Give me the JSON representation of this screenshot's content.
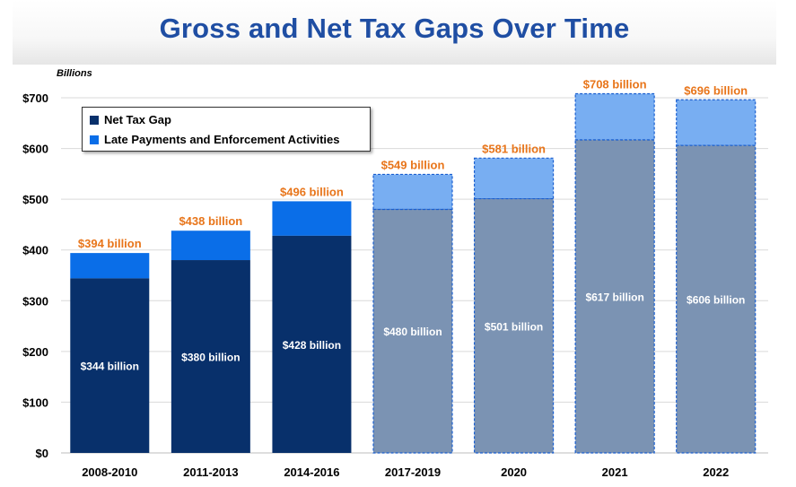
{
  "chart_data": {
    "type": "bar",
    "title": "Gross and Net Tax Gaps Over Time",
    "units_label": "Billions",
    "categories": [
      "2008-2010",
      "2011-2013",
      "2014-2016",
      "2017-2019",
      "2020",
      "2021",
      "2022"
    ],
    "series": [
      {
        "name": "Net Tax Gap",
        "values": [
          344,
          380,
          428,
          480,
          501,
          617,
          606
        ],
        "labels": [
          "$344 billion",
          "$380 billion",
          "$428 billion",
          "$480 billion",
          "$501 billion",
          "$617 billion",
          "$606 billion"
        ]
      },
      {
        "name": "Late Payments and Enforcement Activities",
        "values": [
          50,
          58,
          68,
          69,
          80,
          91,
          90
        ]
      }
    ],
    "totals": [
      394,
      438,
      496,
      549,
      581,
      708,
      696
    ],
    "total_labels": [
      "$394 billion",
      "$438 billion",
      "$496 billion",
      "$549 billion",
      "$581 billion",
      "$708 billion",
      "$696 billion"
    ],
    "projected": [
      false,
      false,
      false,
      true,
      true,
      true,
      true
    ],
    "yticks": [
      0,
      100,
      200,
      300,
      400,
      500,
      600,
      700
    ],
    "ytick_labels": [
      "$0",
      "$100",
      "$200",
      "$300",
      "$400",
      "$500",
      "$600",
      "$700"
    ],
    "ylim": [
      0,
      710
    ],
    "grid": true,
    "legend_position": "top-left",
    "colors": {
      "net": "#08306b",
      "late": "#0a6ee8",
      "net_projected": "#7b93b3",
      "late_projected": "#78aef2",
      "total_label": "#e8751a",
      "title": "#1f4ea3"
    }
  }
}
